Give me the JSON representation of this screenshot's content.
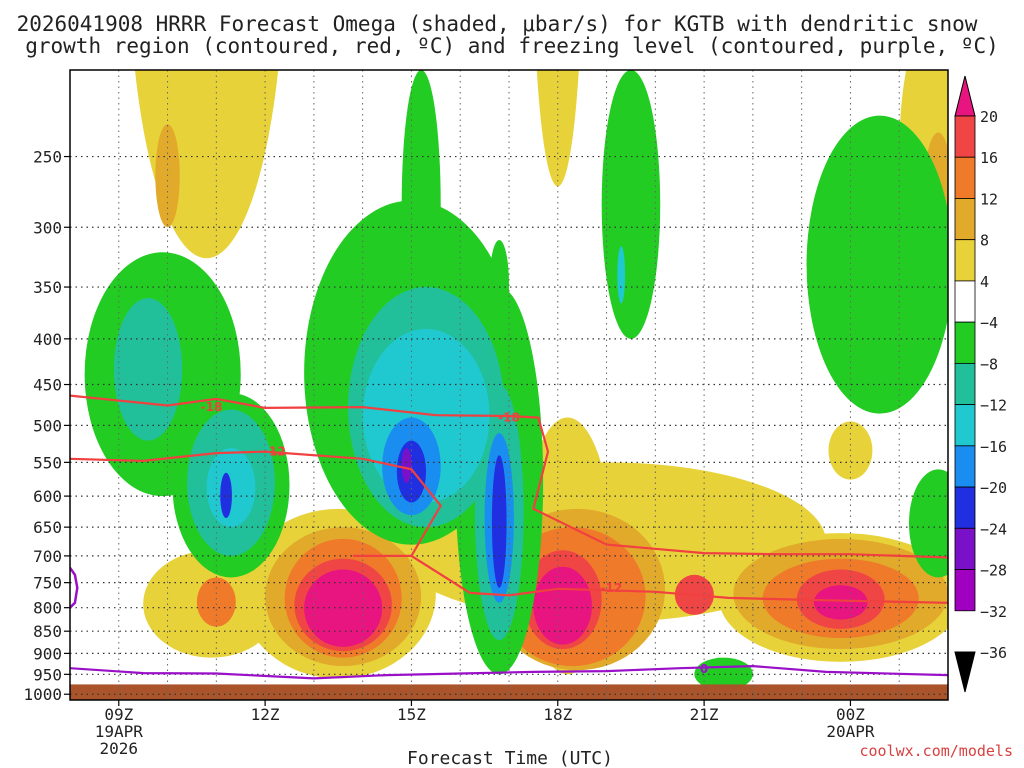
{
  "chart_data": {
    "type": "heatmap",
    "title_lines": [
      "2026041908 HRRR Forecast Omega (shaded, μbar/s) for KGTB with dendritic snow",
      "growth region (contoured, red, ºC) and freezing level (contoured, purple, ºC)"
    ],
    "xlabel": "Forecast Time (UTC)",
    "x_ticks": [
      {
        "hour": 9,
        "label": "09Z",
        "sub": [
          "19APR",
          "2026"
        ]
      },
      {
        "hour": 12,
        "label": "12Z",
        "sub": []
      },
      {
        "hour": 15,
        "label": "15Z",
        "sub": []
      },
      {
        "hour": 18,
        "label": "18Z",
        "sub": []
      },
      {
        "hour": 21,
        "label": "21Z",
        "sub": []
      },
      {
        "hour": 24,
        "label": "00Z",
        "sub": [
          "20APR"
        ]
      }
    ],
    "x_range_hours": [
      8.0,
      26.0
    ],
    "y_ticks": [
      250,
      300,
      350,
      400,
      450,
      500,
      550,
      600,
      650,
      700,
      750,
      800,
      850,
      900,
      950,
      1000
    ],
    "y_range_hpa": [
      200,
      1015
    ],
    "colorbar": {
      "labels": [
        "20",
        "16",
        "12",
        "8",
        "4",
        "−4",
        "−8",
        "−12",
        "−16",
        "−20",
        "−24",
        "−28",
        "−32",
        "−36"
      ],
      "colors": [
        "#e8147f",
        "#f04545",
        "#ee7a2a",
        "#e2aa2a",
        "#e8d23a",
        "#ffffff",
        "#22cc22",
        "#22c09a",
        "#20c8d0",
        "#1a8ef0",
        "#2030e0",
        "#7a10c8",
        "#a000c0",
        "#9c9c9c"
      ],
      "top_arrow_color": "#e8147f",
      "bottom_arrow_color": "#000000"
    },
    "shading": [
      {
        "value": 6,
        "level": 4,
        "hour": 10.8,
        "p": 195,
        "rh": 1.6,
        "rp": 130
      },
      {
        "value": 8,
        "level": 3,
        "hour": 10.0,
        "p": 265,
        "rh": 0.25,
        "rp": 35
      },
      {
        "value": 5,
        "level": 4,
        "hour": 18.0,
        "p": 175,
        "rh": 0.5,
        "rp": 95
      },
      {
        "value": 6,
        "level": 4,
        "hour": 25.8,
        "p": 265,
        "rh": 0.8,
        "rp": 95
      },
      {
        "value": 10,
        "level": 3,
        "hour": 25.8,
        "p": 280,
        "rh": 0.3,
        "rp": 45
      },
      {
        "value": 5,
        "level": 4,
        "hour": 24.0,
        "p": 535,
        "rh": 0.45,
        "rp": 40
      },
      {
        "value": 5,
        "level": 4,
        "hour": 19.0,
        "p": 690,
        "rh": 4.5,
        "rp": 140
      },
      {
        "value": 6,
        "level": 4,
        "hour": 13.5,
        "p": 790,
        "rh": 2.0,
        "rp": 170
      },
      {
        "value": 6,
        "level": 4,
        "hour": 10.9,
        "p": 800,
        "rh": 1.4,
        "rp": 110
      },
      {
        "value": 6,
        "level": 4,
        "hour": 23.8,
        "p": 790,
        "rh": 2.5,
        "rp": 130
      },
      {
        "value": 6,
        "level": 4,
        "hour": 18.2,
        "p": 720,
        "rh": 0.9,
        "rp": 230
      },
      {
        "value": 10,
        "level": 3,
        "hour": 13.6,
        "p": 790,
        "rh": 1.6,
        "rp": 140
      },
      {
        "value": 10,
        "level": 3,
        "hour": 18.4,
        "p": 780,
        "rh": 1.8,
        "rp": 160
      },
      {
        "value": 10,
        "level": 3,
        "hour": 23.8,
        "p": 780,
        "rh": 2.2,
        "rp": 110
      },
      {
        "value": 14,
        "level": 2,
        "hour": 13.6,
        "p": 790,
        "rh": 1.2,
        "rp": 120
      },
      {
        "value": 14,
        "level": 2,
        "hour": 18.3,
        "p": 790,
        "rh": 1.5,
        "rp": 140
      },
      {
        "value": 14,
        "level": 2,
        "hour": 23.8,
        "p": 785,
        "rh": 1.6,
        "rp": 80
      },
      {
        "value": 14,
        "level": 2,
        "hour": 11.0,
        "p": 790,
        "rh": 0.4,
        "rp": 50
      },
      {
        "value": 18,
        "level": 1,
        "hour": 13.6,
        "p": 800,
        "rh": 1.0,
        "rp": 95
      },
      {
        "value": 18,
        "level": 1,
        "hour": 18.1,
        "p": 790,
        "rh": 0.8,
        "rp": 100
      },
      {
        "value": 18,
        "level": 1,
        "hour": 20.8,
        "p": 775,
        "rh": 0.4,
        "rp": 40
      },
      {
        "value": 18,
        "level": 1,
        "hour": 23.8,
        "p": 785,
        "rh": 0.9,
        "rp": 60
      },
      {
        "value": 22,
        "level": 0,
        "hour": 13.6,
        "p": 805,
        "rh": 0.8,
        "rp": 80
      },
      {
        "value": 22,
        "level": 0,
        "hour": 18.1,
        "p": 800,
        "rh": 0.6,
        "rp": 80
      },
      {
        "value": 22,
        "level": 0,
        "hour": 23.8,
        "p": 790,
        "rh": 0.55,
        "rp": 35
      },
      {
        "value": -6,
        "level": 6,
        "hour": 9.9,
        "p": 460,
        "rh": 1.6,
        "rp": 140
      },
      {
        "value": -6,
        "level": 6,
        "hour": 11.3,
        "p": 600,
        "rh": 1.2,
        "rp": 140
      },
      {
        "value": -6,
        "level": 6,
        "hour": 15.0,
        "p": 480,
        "rh": 2.2,
        "rp": 200
      },
      {
        "value": -6,
        "level": 6,
        "hour": 16.8,
        "p": 650,
        "rh": 0.9,
        "rp": 300
      },
      {
        "value": -6,
        "level": 6,
        "hour": 15.2,
        "p": 300,
        "rh": 0.4,
        "rp": 100
      },
      {
        "value": -6,
        "level": 6,
        "hour": 19.5,
        "p": 300,
        "rh": 0.6,
        "rp": 100
      },
      {
        "value": -6,
        "level": 6,
        "hour": 24.6,
        "p": 355,
        "rh": 1.5,
        "rp": 130
      },
      {
        "value": -6,
        "level": 6,
        "hour": 25.8,
        "p": 650,
        "rh": 0.6,
        "rp": 90
      },
      {
        "value": -6,
        "level": 6,
        "hour": 21.4,
        "p": 950,
        "rh": 0.6,
        "rp": 40
      },
      {
        "value": -6,
        "level": 6,
        "hour": 16.8,
        "p": 350,
        "rh": 0.2,
        "rp": 40
      },
      {
        "value": -10,
        "level": 7,
        "hour": 9.6,
        "p": 440,
        "rh": 0.7,
        "rp": 80
      },
      {
        "value": -10,
        "level": 7,
        "hour": 11.3,
        "p": 590,
        "rh": 0.9,
        "rp": 110
      },
      {
        "value": -10,
        "level": 7,
        "hour": 15.3,
        "p": 500,
        "rh": 1.6,
        "rp": 150
      },
      {
        "value": -10,
        "level": 7,
        "hour": 16.8,
        "p": 660,
        "rh": 0.5,
        "rp": 210
      },
      {
        "value": -14,
        "level": 8,
        "hour": 15.3,
        "p": 500,
        "rh": 1.3,
        "rp": 110
      },
      {
        "value": -14,
        "level": 8,
        "hour": 11.3,
        "p": 590,
        "rh": 0.5,
        "rp": 60
      },
      {
        "value": -14,
        "level": 8,
        "hour": 19.3,
        "p": 340,
        "rh": 0.08,
        "rp": 25
      },
      {
        "value": -18,
        "level": 9,
        "hour": 15.0,
        "p": 560,
        "rh": 0.6,
        "rp": 70
      },
      {
        "value": -18,
        "level": 9,
        "hour": 16.8,
        "p": 650,
        "rh": 0.3,
        "rp": 140
      },
      {
        "value": -22,
        "level": 10,
        "hour": 15.0,
        "p": 565,
        "rh": 0.3,
        "rp": 45
      },
      {
        "value": -22,
        "level": 10,
        "hour": 11.2,
        "p": 600,
        "rh": 0.12,
        "rp": 35
      },
      {
        "value": -22,
        "level": 10,
        "hour": 16.8,
        "p": 650,
        "rh": 0.15,
        "rp": 110
      },
      {
        "value": -26,
        "level": 11,
        "hour": 14.9,
        "p": 555,
        "rh": 0.1,
        "rp": 25
      }
    ],
    "dgz_contours": [
      {
        "label": "-18",
        "label_at": [
          10.9,
          477
        ],
        "label2": "-18",
        "label2_at": [
          17.0,
          490
        ],
        "points": [
          [
            8.0,
            463
          ],
          [
            10.0,
            475
          ],
          [
            11.0,
            467
          ],
          [
            12.0,
            478
          ],
          [
            14.0,
            477
          ],
          [
            15.5,
            487
          ],
          [
            17.0,
            488
          ],
          [
            17.6,
            490
          ],
          [
            17.8,
            535
          ],
          [
            17.5,
            620
          ],
          [
            19.0,
            680
          ],
          [
            21.0,
            695
          ],
          [
            22.5,
            697
          ],
          [
            24.0,
            697
          ],
          [
            26.0,
            703
          ]
        ]
      },
      {
        "label": "-12",
        "label_at": [
          12.2,
          535
        ],
        "label2": "-12",
        "label2_at": [
          19.1,
          760
        ],
        "points": [
          [
            8.0,
            545
          ],
          [
            9.5,
            548
          ],
          [
            11.0,
            537
          ],
          [
            12.0,
            535
          ],
          [
            14.0,
            545
          ],
          [
            15.0,
            560
          ],
          [
            15.6,
            615
          ],
          [
            15.0,
            700
          ],
          [
            13.8,
            700
          ],
          [
            15.0,
            700
          ],
          [
            16.2,
            770
          ],
          [
            17.0,
            775
          ],
          [
            18.0,
            762
          ],
          [
            20.0,
            768
          ],
          [
            21.5,
            780
          ],
          [
            23.5,
            785
          ],
          [
            26.0,
            790
          ]
        ]
      }
    ],
    "freezing_level": {
      "label": "0",
      "label_at": [
        21.0,
        937
      ],
      "points": [
        [
          8.0,
          935
        ],
        [
          9.5,
          947
        ],
        [
          11.0,
          948
        ],
        [
          13.0,
          960
        ],
        [
          14.5,
          952
        ],
        [
          16.0,
          948
        ],
        [
          17.5,
          944
        ],
        [
          19.0,
          942
        ],
        [
          20.5,
          935
        ],
        [
          22.0,
          930
        ],
        [
          23.5,
          944
        ],
        [
          26.0,
          952
        ]
      ],
      "left_edge_points": [
        [
          8.0,
          722
        ],
        [
          8.1,
          735
        ],
        [
          8.15,
          760
        ],
        [
          8.1,
          790
        ],
        [
          8.0,
          800
        ]
      ]
    },
    "ground_below_hpa": 975,
    "credit": "coolwx.com/models"
  }
}
